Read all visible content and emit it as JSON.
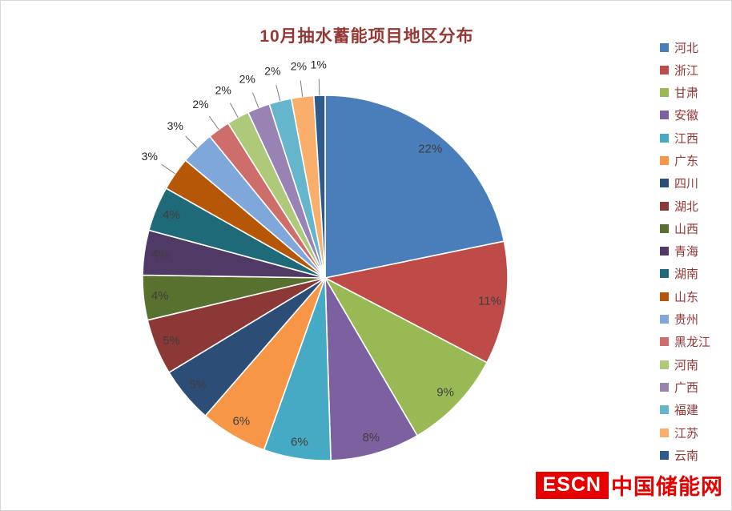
{
  "chart_data": {
    "type": "pie",
    "title": "10月抽水蓄能项目地区分布",
    "legend_position": "right",
    "start_angle_deg": 0,
    "direction": "clockwise",
    "label_format": "percent",
    "series": [
      {
        "name": "河北",
        "value": 22,
        "color": "#4A7EBB"
      },
      {
        "name": "浙江",
        "value": 11,
        "color": "#BE4B48"
      },
      {
        "name": "甘肃",
        "value": 9,
        "color": "#98B954"
      },
      {
        "name": "安徽",
        "value": 8,
        "color": "#7D60A0"
      },
      {
        "name": "江西",
        "value": 6,
        "color": "#46AAC5"
      },
      {
        "name": "广东",
        "value": 6,
        "color": "#F79646"
      },
      {
        "name": "四川",
        "value": 5,
        "color": "#2C4D75"
      },
      {
        "name": "湖北",
        "value": 5,
        "color": "#8C3836"
      },
      {
        "name": "山西",
        "value": 4,
        "color": "#59712E"
      },
      {
        "name": "青海",
        "value": 4,
        "color": "#4F3A65"
      },
      {
        "name": "湖南",
        "value": 4,
        "color": "#1F6A79"
      },
      {
        "name": "山东",
        "value": 3,
        "color": "#B65708"
      },
      {
        "name": "贵州",
        "value": 3,
        "color": "#7FA7D9"
      },
      {
        "name": "黑龙江",
        "value": 2,
        "color": "#CE6E6B"
      },
      {
        "name": "河南",
        "value": 2,
        "color": "#AFC97A"
      },
      {
        "name": "广西",
        "value": 2,
        "color": "#9983B5"
      },
      {
        "name": "福建",
        "value": 2,
        "color": "#65B5CC"
      },
      {
        "name": "江苏",
        "value": 2,
        "color": "#F9AE6B"
      },
      {
        "name": "云南",
        "value": 1,
        "color": "#2F5B8B"
      }
    ]
  },
  "logo": {
    "badge": "ESCN",
    "text": "中国储能网",
    "color": "#e60000"
  }
}
